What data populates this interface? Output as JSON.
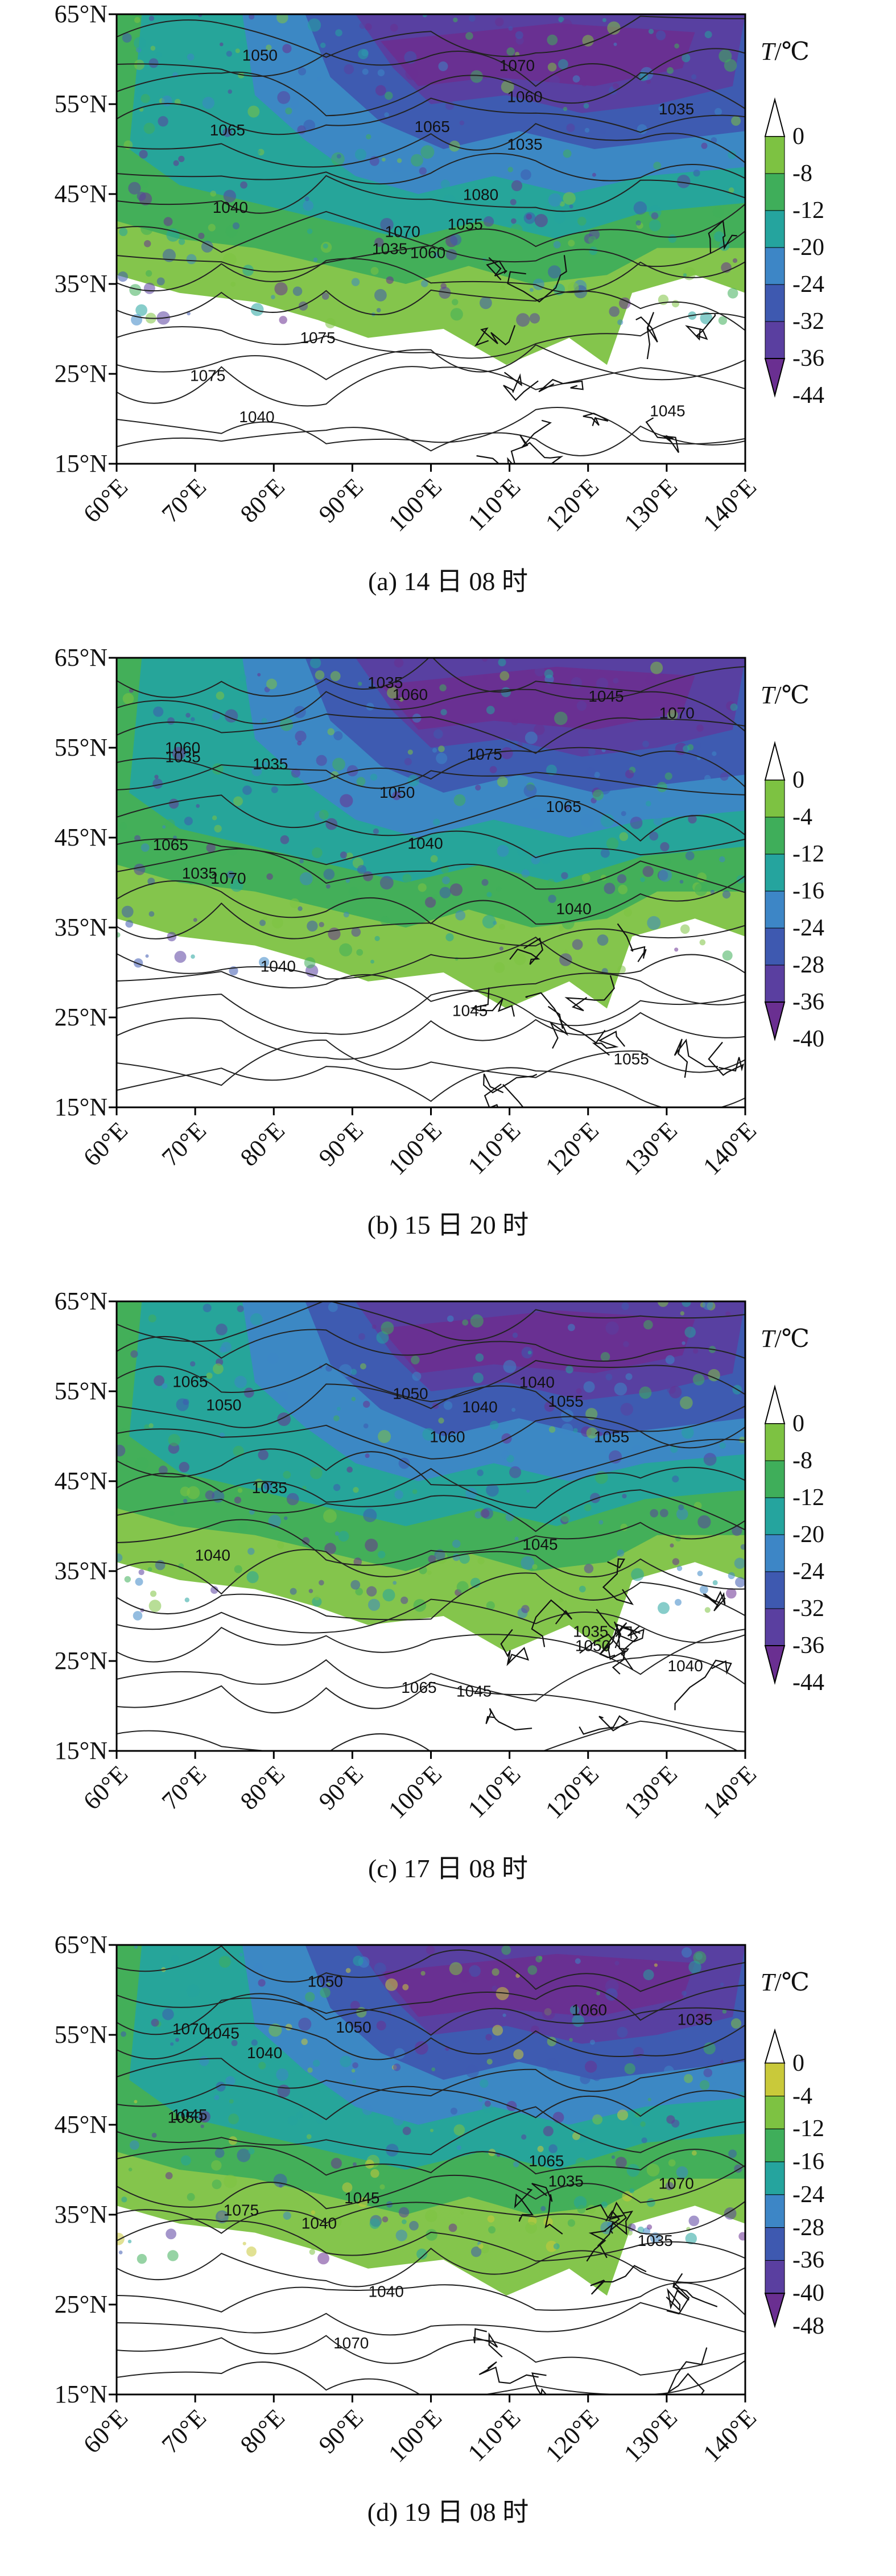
{
  "panels": [
    {
      "id": "a",
      "caption": "(a) 14 日 08 时",
      "colorbar_title_var": "T",
      "colorbar_title_unit": "/℃",
      "colorbar_ticks": [
        "0",
        "-8",
        "-12",
        "-20",
        "-24",
        "-32",
        "-36",
        "-44"
      ],
      "colorbar_colors": [
        "#ffffff",
        "#7dc242",
        "#3fae5a",
        "#25a49e",
        "#3d86c6",
        "#3e59b0",
        "#5a3fa0",
        "#6a2f91"
      ],
      "contour_labels": [
        "1060",
        "1065",
        "1070",
        "1075",
        "1080",
        "1075",
        "1070",
        "1065",
        "1060",
        "1055",
        "1050",
        "1045",
        "1040",
        "1035",
        "1035",
        "1035",
        "1040"
      ]
    },
    {
      "id": "b",
      "caption": "(b) 15 日 20 时",
      "colorbar_title_var": "T",
      "colorbar_title_unit": "/℃",
      "colorbar_ticks": [
        "0",
        "-4",
        "-12",
        "-16",
        "-24",
        "-28",
        "-36",
        "-40"
      ],
      "colorbar_colors": [
        "#ffffff",
        "#7dc242",
        "#3fae5a",
        "#25a49e",
        "#3d86c6",
        "#3e59b0",
        "#5a3fa0",
        "#6a2f91"
      ],
      "contour_labels": [
        "1065",
        "1060",
        "1065",
        "1070",
        "1060",
        "1055",
        "1070",
        "1075",
        "1050",
        "1045",
        "1040",
        "1040",
        "1035",
        "1035",
        "1035",
        "1040",
        "1045",
        "1035"
      ]
    },
    {
      "id": "c",
      "caption": "(c) 17 日 08 时",
      "colorbar_title_var": "T",
      "colorbar_title_unit": "/℃",
      "colorbar_ticks": [
        "0",
        "-8",
        "-12",
        "-20",
        "-24",
        "-32",
        "-36",
        "-44"
      ],
      "colorbar_colors": [
        "#ffffff",
        "#7dc242",
        "#3fae5a",
        "#25a49e",
        "#3d86c6",
        "#3e59b0",
        "#5a3fa0",
        "#6a2f91"
      ],
      "contour_labels": [
        "1060",
        "1050",
        "1065",
        "1055",
        "1065",
        "1050",
        "1045",
        "1040",
        "1035",
        "1040",
        "1035",
        "1040",
        "1045",
        "1050",
        "1040",
        "1055"
      ]
    },
    {
      "id": "d",
      "caption": "(d) 19 日 08 时",
      "colorbar_title_var": "T",
      "colorbar_title_unit": "/℃",
      "colorbar_ticks": [
        "0",
        "-4",
        "-12",
        "-16",
        "-24",
        "-28",
        "-36",
        "-40",
        "-48"
      ],
      "colorbar_colors": [
        "#ffffff",
        "#c9c93a",
        "#7dc242",
        "#3fae5a",
        "#25a49e",
        "#3d86c6",
        "#3e59b0",
        "#5a3fa0",
        "#6a2f91"
      ],
      "contour_labels": [
        "1070",
        "1075",
        "1070",
        "1065",
        "1035",
        "1045",
        "1050",
        "1060",
        "1070",
        "1050",
        "1045",
        "1040",
        "1035",
        "1040",
        "1035",
        "1040",
        "1045",
        "1050"
      ]
    }
  ],
  "lat_ticks": [
    "65°N",
    "55°N",
    "45°N",
    "35°N",
    "25°N",
    "15°N"
  ],
  "lon_ticks": [
    "60°E",
    "70°E",
    "80°E",
    "90°E",
    "100°E",
    "110°E",
    "120°E",
    "130°E",
    "140°E"
  ]
}
